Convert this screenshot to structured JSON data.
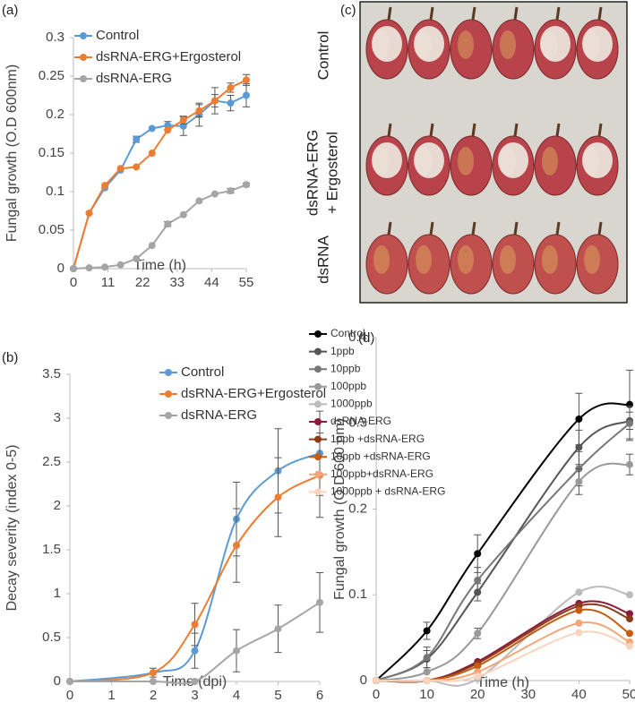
{
  "chart_data": [
    {
      "type": "line",
      "panel": "(a)",
      "x_label": "Time (h)",
      "y_label": "Fungal growth (O.D 600nm)",
      "x": [
        0,
        5,
        10,
        15,
        20,
        25,
        30,
        35,
        40,
        45,
        50,
        55
      ],
      "xlim": [
        0,
        55
      ],
      "xticks": [
        0,
        11,
        22,
        33,
        44,
        55
      ],
      "ylim": [
        0,
        0.3
      ],
      "yticks": [
        0,
        0.05,
        0.1,
        0.15,
        0.2,
        0.25,
        0.3
      ],
      "legend": "top-left",
      "smooth": false,
      "series": [
        {
          "name": "Control",
          "color": "#5b9bd5",
          "values": [
            0,
            0.072,
            0.105,
            0.128,
            0.168,
            0.182,
            0.186,
            0.185,
            0.2,
            0.218,
            0.215,
            0.225
          ],
          "errors": [
            null,
            null,
            null,
            null,
            0.004,
            null,
            0.005,
            0.012,
            0.015,
            0.017,
            0.01,
            0.015
          ]
        },
        {
          "name": "dsRNA-ERG+Ergosterol",
          "color": "#ed7d31",
          "values": [
            0,
            0.072,
            0.108,
            0.13,
            0.132,
            0.15,
            0.18,
            0.193,
            0.205,
            0.218,
            0.235,
            0.245
          ],
          "errors": [
            null,
            null,
            null,
            null,
            null,
            null,
            null,
            0.005,
            0.008,
            0.008,
            0.006,
            0.007
          ]
        },
        {
          "name": "dsRNA-ERG",
          "color": "#a5a5a5",
          "values": [
            0,
            0.001,
            0.002,
            0.005,
            0.013,
            0.03,
            0.058,
            0.07,
            0.088,
            0.097,
            0.101,
            0.109
          ],
          "errors": [
            null,
            null,
            null,
            null,
            null,
            null,
            0.003,
            null,
            null,
            null,
            0.003,
            0.002
          ]
        }
      ]
    },
    {
      "type": "line",
      "panel": "(b)",
      "x_label": "Time (dpi)",
      "y_label": "Decay severity (index 0-5)",
      "x": [
        0,
        2,
        3,
        4,
        5,
        6
      ],
      "xlim": [
        0,
        6
      ],
      "xticks": [
        0,
        1,
        2,
        3,
        4,
        5,
        6
      ],
      "ylim": [
        0,
        3.5
      ],
      "yticks": [
        0,
        0.5,
        1,
        1.5,
        2,
        2.5,
        3,
        3.5
      ],
      "legend": "top-right",
      "smooth": true,
      "series": [
        {
          "name": "Control",
          "color": "#5b9bd5",
          "values": [
            0,
            0.1,
            0.35,
            1.85,
            2.4,
            2.6
          ],
          "errors": [
            null,
            null,
            0.2,
            0.42,
            0.48,
            0.48
          ]
        },
        {
          "name": "dsRNA-ERG+Ergosterol",
          "color": "#ed7d31",
          "values": [
            0,
            0.1,
            0.65,
            1.55,
            2.1,
            2.35
          ],
          "errors": [
            null,
            0.05,
            0.24,
            0.42,
            0.45,
            0.48
          ]
        },
        {
          "name": "dsRNA-ERG",
          "color": "#a5a5a5",
          "values": [
            0,
            0,
            0,
            0.35,
            0.6,
            0.9
          ],
          "errors": [
            null,
            null,
            null,
            0.24,
            0.27,
            0.34
          ]
        }
      ]
    },
    {
      "type": "line",
      "panel": "(d)",
      "x_label": "Time (h)",
      "y_label": "Fungal growth (O.D 600 nm)",
      "x": [
        0,
        10,
        20,
        40,
        50
      ],
      "xlim": [
        0,
        50
      ],
      "xticks": [
        0,
        10,
        20,
        30,
        40,
        50
      ],
      "ylim": [
        0,
        0.4
      ],
      "yticks": [
        0,
        0.1,
        0.2,
        0.3,
        0.4
      ],
      "legend": "top-left-outside",
      "smooth": true,
      "series": [
        {
          "name": "Control",
          "color": "#000000",
          "values": [
            0,
            0.058,
            0.148,
            0.305,
            0.322
          ],
          "errors": [
            null,
            0.01,
            0.022,
            0.03,
            0.04
          ]
        },
        {
          "name": "1ppb",
          "color": "#555555",
          "values": [
            0,
            0.025,
            0.103,
            0.272,
            0.303
          ],
          "errors": [
            null,
            0.01,
            0.01,
            0.02,
            0.01
          ]
        },
        {
          "name": "10ppb",
          "color": "#777777",
          "values": [
            0,
            0.027,
            0.117,
            0.247,
            0.3
          ],
          "errors": [
            null,
            0.012,
            0.015,
            0.02,
            0.02
          ]
        },
        {
          "name": "100ppb",
          "color": "#999999",
          "values": [
            0,
            0.01,
            0.055,
            0.232,
            0.252
          ],
          "errors": [
            null,
            null,
            0.006,
            0.015,
            0.012
          ]
        },
        {
          "name": "1000ppb",
          "color": "#bbbbbb",
          "values": [
            0,
            0,
            0.002,
            0.103,
            0.1
          ],
          "errors": [
            null,
            null,
            null,
            null,
            null
          ]
        },
        {
          "name": "dsRNA-ERG",
          "color": "#8b1a3a",
          "values": [
            0,
            0,
            0.022,
            0.09,
            0.078
          ],
          "errors": [
            null,
            null,
            null,
            null,
            null
          ]
        },
        {
          "name": "1ppb +dsRNA-ERG",
          "color": "#8b3a1a",
          "values": [
            0,
            0,
            0.02,
            0.087,
            0.072
          ],
          "errors": [
            null,
            null,
            null,
            null,
            null
          ]
        },
        {
          "name": "10ppb +dsRNA-ERG",
          "color": "#c55a11",
          "values": [
            0,
            0,
            0.017,
            0.082,
            0.055
          ],
          "errors": [
            null,
            null,
            null,
            null,
            null
          ]
        },
        {
          "name": "100ppb+dsRNA-ERG",
          "color": "#f4a67a",
          "values": [
            0,
            0,
            0.01,
            0.067,
            0.045
          ],
          "errors": [
            null,
            null,
            null,
            null,
            null
          ]
        },
        {
          "name": "1000ppb  + dsRNA-ERG",
          "color": "#f9d3bd",
          "values": [
            0,
            0,
            0.005,
            0.056,
            0.04
          ],
          "errors": [
            null,
            null,
            null,
            null,
            null
          ]
        }
      ]
    }
  ],
  "photo": {
    "label": "(c)",
    "row_labels": [
      "Control",
      "dsRNA-ERG",
      "+ Ergosterol",
      "dsRNA"
    ]
  }
}
